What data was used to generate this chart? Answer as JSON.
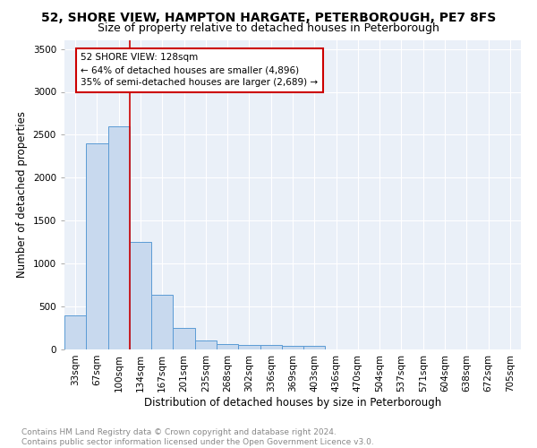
{
  "title1": "52, SHORE VIEW, HAMPTON HARGATE, PETERBOROUGH, PE7 8FS",
  "title2": "Size of property relative to detached houses in Peterborough",
  "xlabel": "Distribution of detached houses by size in Peterborough",
  "ylabel": "Number of detached properties",
  "categories": [
    "33sqm",
    "67sqm",
    "100sqm",
    "134sqm",
    "167sqm",
    "201sqm",
    "235sqm",
    "268sqm",
    "302sqm",
    "336sqm",
    "369sqm",
    "403sqm",
    "436sqm",
    "470sqm",
    "504sqm",
    "537sqm",
    "571sqm",
    "604sqm",
    "638sqm",
    "672sqm",
    "705sqm"
  ],
  "values": [
    400,
    2400,
    2600,
    1250,
    640,
    250,
    100,
    60,
    55,
    50,
    40,
    40,
    0,
    0,
    0,
    0,
    0,
    0,
    0,
    0,
    0
  ],
  "bar_color": "#c8d9ee",
  "bar_edge_color": "#5b9bd5",
  "vline_color": "#cc0000",
  "annotation_line1": "52 SHORE VIEW: 128sqm",
  "annotation_line2": "← 64% of detached houses are smaller (4,896)",
  "annotation_line3": "35% of semi-detached houses are larger (2,689) →",
  "annotation_box_color": "white",
  "annotation_box_edge": "#cc0000",
  "ylim": [
    0,
    3600
  ],
  "yticks": [
    0,
    500,
    1000,
    1500,
    2000,
    2500,
    3000,
    3500
  ],
  "footer": "Contains HM Land Registry data © Crown copyright and database right 2024.\nContains public sector information licensed under the Open Government Licence v3.0.",
  "bg_color": "#eaf0f8",
  "grid_color": "white",
  "title1_fontsize": 10,
  "title2_fontsize": 9,
  "xlabel_fontsize": 8.5,
  "ylabel_fontsize": 8.5,
  "tick_fontsize": 7.5,
  "footer_fontsize": 6.5
}
